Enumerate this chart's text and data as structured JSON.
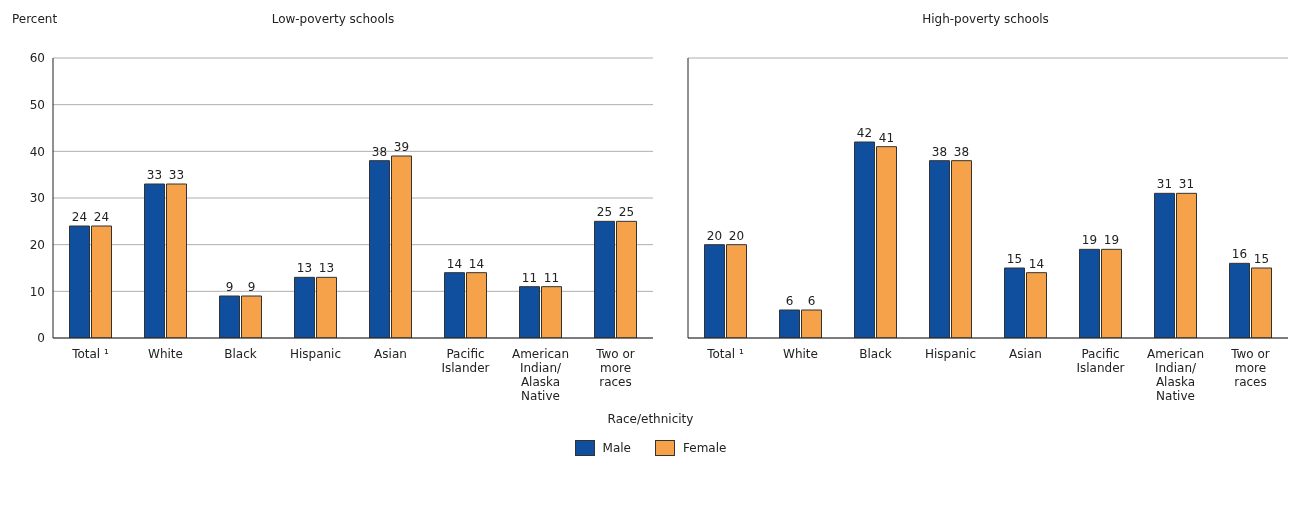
{
  "chart_data": [
    {
      "type": "bar",
      "title": "Low-poverty schools",
      "ylabel": "Percent",
      "xlabel": "Race/ethnicity",
      "categories": [
        "Total ¹",
        "White",
        "Black",
        "Hispanic",
        "Asian",
        "Pacific Islander",
        "American Indian/Alaska Native",
        "Two or more races"
      ],
      "series": [
        {
          "name": "Male",
          "color": "#0f4f9e",
          "values": [
            24,
            33,
            9,
            13,
            38,
            14,
            11,
            25
          ]
        },
        {
          "name": "Female",
          "color": "#f5a24a",
          "values": [
            24,
            33,
            9,
            13,
            39,
            14,
            11,
            25
          ]
        }
      ],
      "ylim": [
        0,
        60
      ],
      "yticks": [
        0,
        10,
        20,
        30,
        40,
        50,
        60
      ],
      "grid": "y",
      "legend": "bottom",
      "data_labels": true
    },
    {
      "type": "bar",
      "title": "High-poverty schools",
      "categories": [
        "Total ¹",
        "White",
        "Black",
        "Hispanic",
        "Asian",
        "Pacific Islander",
        "American Indian/Alaska Native",
        "Two or more races"
      ],
      "series": [
        {
          "color": "#0f4f9e",
          "values": [
            20,
            6,
            42,
            38,
            15,
            19,
            31,
            16
          ]
        },
        {
          "color": "#f5a24a",
          "values": [
            20,
            6,
            41,
            38,
            14,
            19,
            31,
            15
          ]
        }
      ],
      "ylim": [
        0,
        60
      ],
      "yticks": [
        0,
        10,
        20,
        30,
        40,
        50,
        60
      ],
      "grid": "y",
      "tick_labels": "x",
      "data_labels": true
    }
  ]
}
